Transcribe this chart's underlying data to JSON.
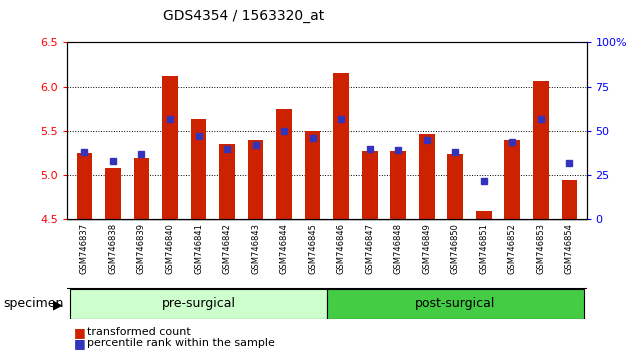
{
  "title": "GDS4354 / 1563320_at",
  "samples": [
    "GSM746837",
    "GSM746838",
    "GSM746839",
    "GSM746840",
    "GSM746841",
    "GSM746842",
    "GSM746843",
    "GSM746844",
    "GSM746845",
    "GSM746846",
    "GSM746847",
    "GSM746848",
    "GSM746849",
    "GSM746850",
    "GSM746851",
    "GSM746852",
    "GSM746853",
    "GSM746854"
  ],
  "bar_values": [
    5.25,
    5.08,
    5.2,
    6.12,
    5.63,
    5.35,
    5.4,
    5.75,
    5.5,
    6.15,
    5.27,
    5.27,
    5.47,
    5.24,
    4.6,
    5.4,
    6.07,
    4.95
  ],
  "dot_values": [
    38,
    33,
    37,
    57,
    47,
    40,
    42,
    50,
    46,
    57,
    40,
    39,
    45,
    38,
    22,
    44,
    57,
    32
  ],
  "ylim_left": [
    4.5,
    6.5
  ],
  "ylim_right": [
    0,
    100
  ],
  "yticks_left": [
    4.5,
    5.0,
    5.5,
    6.0,
    6.5
  ],
  "yticks_right": [
    0,
    25,
    50,
    75,
    100
  ],
  "ytick_labels_right": [
    "0",
    "25",
    "50",
    "75",
    "100%"
  ],
  "bar_color": "#cc2200",
  "dot_color": "#3333bb",
  "bar_bottom": 4.5,
  "pre_surgical_color": "#ccffcc",
  "post_surgical_color": "#44cc44",
  "label_area_color": "#c8c8c8",
  "plot_bg": "#ffffff",
  "n_pre": 9,
  "n_post": 9,
  "specimen_label": "specimen",
  "legend_label_count": "transformed count",
  "legend_label_pct": "percentile rank within the sample",
  "grid_yticks": [
    5.0,
    5.5,
    6.0
  ]
}
